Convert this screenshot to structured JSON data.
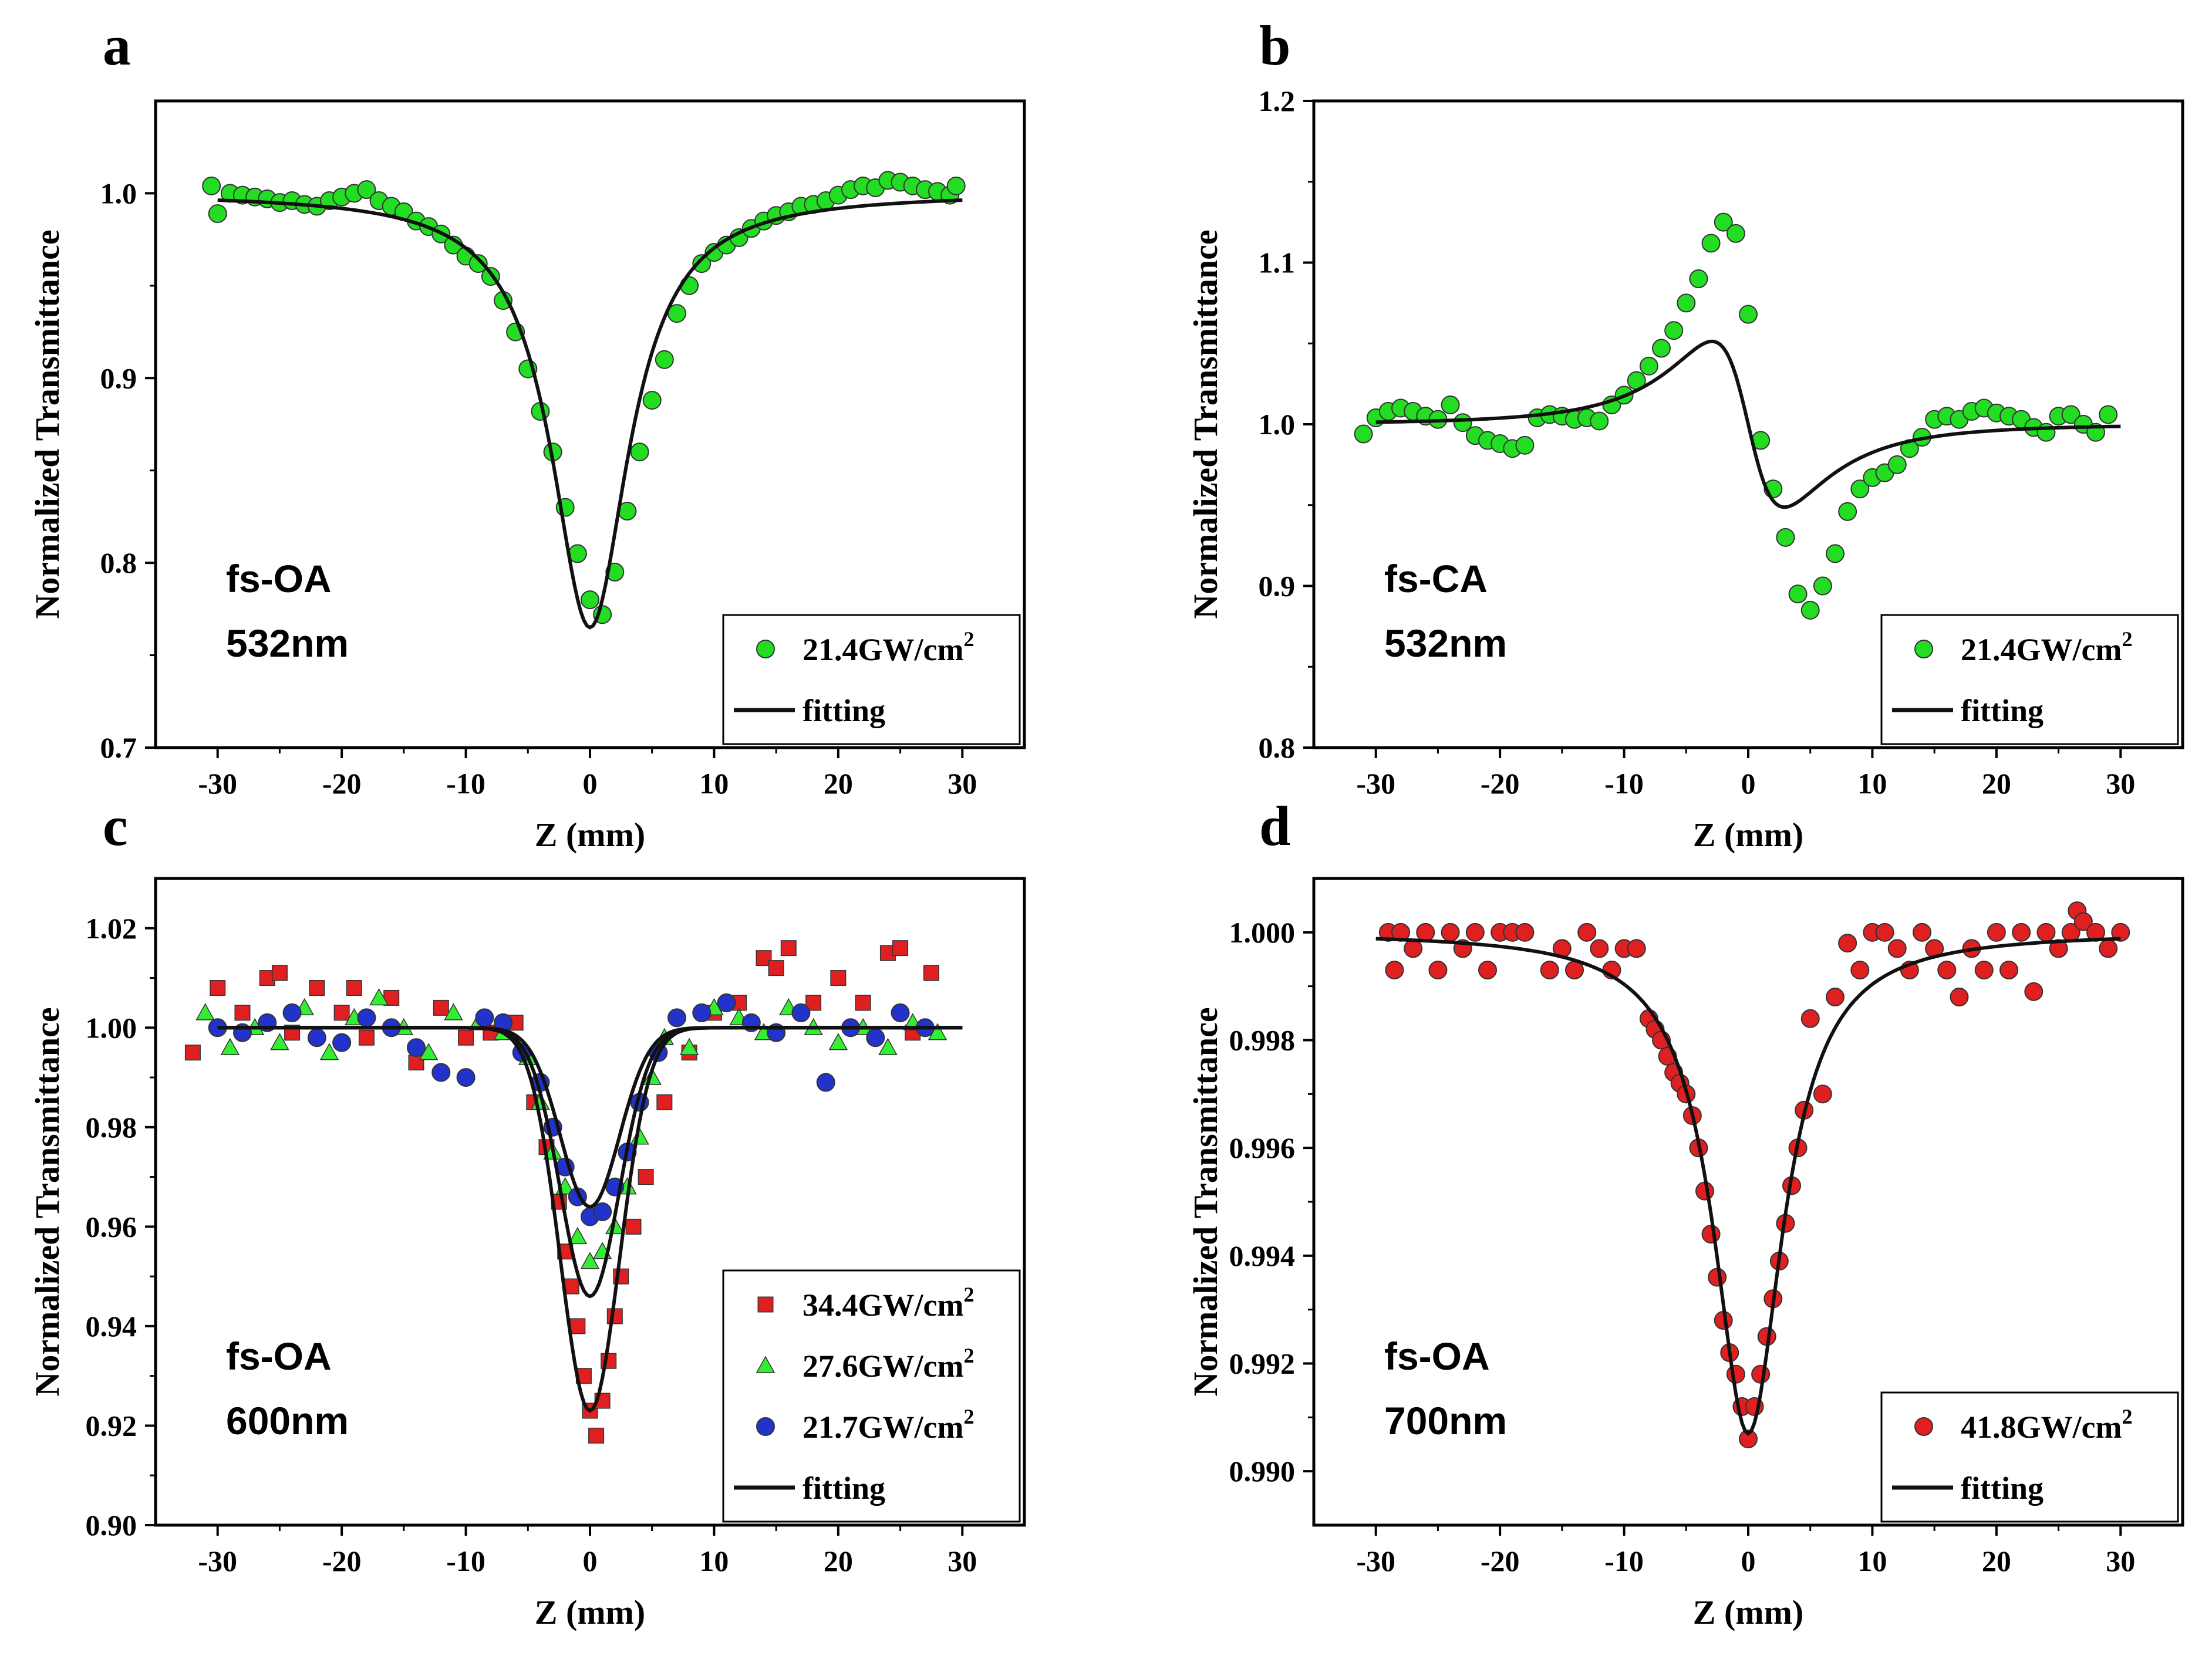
{
  "figure": {
    "panel_letters": [
      "a",
      "b",
      "c",
      "d"
    ]
  },
  "chart_data": [
    {
      "type": "scatter",
      "panel": "a",
      "xlabel": "Z (mm)",
      "ylabel": "Normalized Transmittance",
      "xlim": [
        -35,
        35
      ],
      "ylim": [
        0.7,
        1.05
      ],
      "xticks": [
        -30,
        -20,
        -10,
        0,
        10,
        20,
        30
      ],
      "yticks": [
        0.7,
        0.8,
        0.9,
        1.0
      ],
      "ytick_decimals": 1,
      "annotation": [
        "fs-OA",
        "532nm"
      ],
      "legend_position": "bottom-right",
      "model": {
        "kind": "oa",
        "depth": 0.235,
        "z0": 3.8,
        "baseline": 1.0
      },
      "series": [
        {
          "name": "21.4GW/cm",
          "superscript": "2",
          "marker": "circle",
          "color": "#22dd22",
          "x": [
            -30.5,
            -30.0,
            -29.0,
            -28.0,
            -27.0,
            -26.0,
            -25.0,
            -24.0,
            -23.0,
            -22.0,
            -21.0,
            -20.0,
            -19.0,
            -18.0,
            -17.0,
            -16.0,
            -15.0,
            -14.0,
            -13.0,
            -12.0,
            -11.0,
            -10.0,
            -9.0,
            -8.0,
            -7.0,
            -6.0,
            -5.0,
            -4.0,
            -3.0,
            -2.0,
            -1.0,
            0.0,
            1.0,
            2.0,
            3.0,
            4.0,
            5.0,
            6.0,
            7.0,
            8.0,
            9.0,
            10.0,
            11.0,
            12.0,
            13.0,
            14.0,
            15.0,
            16.0,
            17.0,
            18.0,
            19.0,
            20.0,
            21.0,
            22.0,
            23.0,
            24.0,
            25.0,
            26.0,
            27.0,
            28.0,
            29.0,
            29.5
          ],
          "y": [
            1.004,
            0.989,
            1.0,
            0.999,
            0.998,
            0.997,
            0.995,
            0.996,
            0.994,
            0.993,
            0.996,
            0.998,
            1.0,
            1.002,
            0.996,
            0.993,
            0.99,
            0.985,
            0.982,
            0.978,
            0.972,
            0.966,
            0.962,
            0.955,
            0.942,
            0.925,
            0.905,
            0.882,
            0.86,
            0.83,
            0.805,
            0.78,
            0.772,
            0.795,
            0.828,
            0.86,
            0.888,
            0.91,
            0.935,
            0.95,
            0.962,
            0.968,
            0.972,
            0.976,
            0.981,
            0.985,
            0.988,
            0.99,
            0.993,
            0.994,
            0.996,
            0.999,
            1.002,
            1.004,
            1.003,
            1.007,
            1.006,
            1.004,
            1.002,
            1.001,
            0.999,
            1.004
          ]
        }
      ]
    },
    {
      "type": "scatter",
      "panel": "b",
      "xlabel": "Z (mm)",
      "ylabel": "Normalized Transmittance",
      "xlim": [
        -35,
        35
      ],
      "ylim": [
        0.8,
        1.2
      ],
      "xticks": [
        -30,
        -20,
        -10,
        0,
        10,
        20,
        30
      ],
      "yticks": [
        0.8,
        0.9,
        1.0,
        1.1,
        1.2
      ],
      "ytick_decimals": 1,
      "annotation": [
        "fs-CA",
        "532nm"
      ],
      "legend_position": "bottom-right",
      "model": {
        "kind": "ca",
        "amp": 0.235,
        "z0": 3.4,
        "baseline": 1.0
      },
      "series": [
        {
          "name": "21.4GW/cm",
          "superscript": "2",
          "marker": "circle",
          "color": "#22dd22",
          "x": [
            -31.0,
            -30.0,
            -29.0,
            -28.0,
            -27.0,
            -26.0,
            -25.0,
            -24.0,
            -23.0,
            -22.0,
            -21.0,
            -20.0,
            -19.0,
            -18.0,
            -17.0,
            -16.0,
            -15.0,
            -14.0,
            -13.0,
            -12.0,
            -11.0,
            -10.0,
            -9.0,
            -8.0,
            -7.0,
            -6.0,
            -5.0,
            -4.0,
            -3.0,
            -2.0,
            -1.0,
            0.0,
            1.0,
            2.0,
            3.0,
            4.0,
            5.0,
            6.0,
            7.0,
            8.0,
            9.0,
            10.0,
            11.0,
            12.0,
            13.0,
            14.0,
            15.0,
            16.0,
            17.0,
            18.0,
            19.0,
            20.0,
            21.0,
            22.0,
            23.0,
            24.0,
            25.0,
            26.0,
            27.0,
            28.0,
            29.0
          ],
          "y": [
            0.994,
            1.004,
            1.008,
            1.01,
            1.008,
            1.005,
            1.003,
            1.012,
            1.001,
            0.993,
            0.99,
            0.988,
            0.985,
            0.987,
            1.004,
            1.006,
            1.005,
            1.003,
            1.004,
            1.002,
            1.012,
            1.018,
            1.027,
            1.036,
            1.047,
            1.058,
            1.075,
            1.09,
            1.112,
            1.125,
            1.118,
            1.068,
            0.99,
            0.96,
            0.93,
            0.895,
            0.885,
            0.9,
            0.92,
            0.946,
            0.96,
            0.967,
            0.97,
            0.975,
            0.985,
            0.992,
            1.003,
            1.005,
            1.003,
            1.008,
            1.01,
            1.007,
            1.005,
            1.003,
            0.998,
            0.995,
            1.005,
            1.006,
            1.0,
            0.995,
            1.006
          ]
        }
      ]
    },
    {
      "type": "scatter",
      "panel": "c",
      "xlabel": "Z (mm)",
      "ylabel": "Normalized Transmittance",
      "xlim": [
        -35,
        35
      ],
      "ylim": [
        0.9,
        1.03
      ],
      "xticks": [
        -30,
        -20,
        -10,
        0,
        10,
        20,
        30
      ],
      "yticks": [
        0.9,
        0.92,
        0.94,
        0.96,
        0.98,
        1.0,
        1.02
      ],
      "ytick_decimals": 2,
      "annotation": [
        "fs-OA",
        "600nm"
      ],
      "legend_position": "bottom-right",
      "model": {
        "kind": "oa-multi",
        "depths": [
          0.077,
          0.054,
          0.036
        ],
        "z0": 2.6,
        "baseline": 1.0
      },
      "series": [
        {
          "name": "34.4GW/cm",
          "superscript": "2",
          "marker": "square",
          "color": "#e02020",
          "x": [
            -32.0,
            -30.0,
            -28.0,
            -26.0,
            -25.0,
            -24.0,
            -22.0,
            -20.0,
            -19.0,
            -18.0,
            -16.0,
            -14.0,
            -12.0,
            -10.0,
            -8.0,
            -6.0,
            -4.5,
            -3.5,
            -2.5,
            -2.0,
            -1.5,
            -1.0,
            -0.5,
            0.0,
            0.5,
            1.0,
            1.5,
            2.0,
            2.5,
            3.5,
            4.5,
            6.0,
            8.0,
            10.0,
            12.0,
            14.0,
            15.0,
            16.0,
            18.0,
            20.0,
            22.0,
            24.0,
            25.0,
            26.0,
            27.5
          ],
          "y": [
            0.995,
            1.008,
            1.003,
            1.01,
            1.011,
            0.999,
            1.008,
            1.003,
            1.008,
            0.998,
            1.006,
            0.993,
            1.004,
            0.998,
            0.999,
            1.001,
            0.985,
            0.976,
            0.965,
            0.955,
            0.948,
            0.94,
            0.93,
            0.923,
            0.918,
            0.925,
            0.933,
            0.942,
            0.95,
            0.96,
            0.97,
            0.985,
            0.995,
            1.003,
            1.005,
            1.014,
            1.012,
            1.016,
            1.005,
            1.01,
            1.005,
            1.015,
            1.016,
            0.999,
            1.011
          ]
        },
        {
          "name": "27.6GW/cm",
          "superscript": "2",
          "marker": "triangle",
          "color": "#33ee33",
          "x": [
            -31.0,
            -29.0,
            -27.0,
            -25.0,
            -23.0,
            -21.0,
            -19.0,
            -17.0,
            -15.0,
            -13.0,
            -11.0,
            -9.0,
            -7.0,
            -5.0,
            -4.0,
            -3.0,
            -2.0,
            -1.0,
            0.0,
            1.0,
            2.0,
            3.0,
            4.0,
            5.0,
            6.0,
            8.0,
            10.0,
            12.0,
            14.0,
            16.0,
            18.0,
            20.0,
            22.0,
            24.0,
            26.0,
            28.0
          ],
          "y": [
            1.003,
            0.996,
            1.0,
            0.997,
            1.004,
            0.995,
            1.002,
            1.006,
            1.0,
            0.995,
            1.003,
            1.001,
            0.999,
            0.994,
            0.985,
            0.975,
            0.968,
            0.958,
            0.953,
            0.955,
            0.96,
            0.968,
            0.978,
            0.99,
            0.998,
            0.996,
            1.004,
            1.002,
            0.999,
            1.004,
            1.0,
            0.997,
            1.0,
            0.996,
            1.001,
            0.999
          ]
        },
        {
          "name": "21.7GW/cm",
          "superscript": "2",
          "marker": "circle",
          "color": "#2233cc",
          "x": [
            -30.0,
            -28.0,
            -26.0,
            -24.0,
            -22.0,
            -20.0,
            -18.0,
            -16.0,
            -14.0,
            -12.0,
            -10.0,
            -8.5,
            -7.0,
            -5.5,
            -4.0,
            -3.0,
            -2.0,
            -1.0,
            0.0,
            1.0,
            2.0,
            3.0,
            4.0,
            5.5,
            7.0,
            9.0,
            11.0,
            13.0,
            15.0,
            17.0,
            19.0,
            21.0,
            23.0,
            25.0,
            27.0
          ],
          "y": [
            1.0,
            0.999,
            1.001,
            1.003,
            0.998,
            0.997,
            1.002,
            1.0,
            0.996,
            0.991,
            0.99,
            1.002,
            1.001,
            0.995,
            0.989,
            0.98,
            0.972,
            0.966,
            0.962,
            0.963,
            0.968,
            0.975,
            0.985,
            0.995,
            1.002,
            1.003,
            1.005,
            1.001,
            0.999,
            1.003,
            0.989,
            1.0,
            0.998,
            1.003,
            1.0
          ]
        }
      ],
      "legend_extra": "fitting"
    },
    {
      "type": "scatter",
      "panel": "d",
      "xlabel": "Z (mm)",
      "ylabel": "Normalized Transmittance",
      "xlim": [
        -35,
        35
      ],
      "ylim": [
        0.989,
        1.001
      ],
      "xticks": [
        -30,
        -20,
        -10,
        0,
        10,
        20,
        30
      ],
      "yticks": [
        0.99,
        0.992,
        0.994,
        0.996,
        0.998,
        1.0
      ],
      "ytick_decimals": 3,
      "annotation": [
        "fs-OA",
        "700nm"
      ],
      "legend_position": "bottom-right",
      "model": {
        "kind": "oa",
        "depth": 0.0093,
        "z0": 3.4,
        "baseline": 1.0
      },
      "series": [
        {
          "name": "41.8GW/cm",
          "superscript": "2",
          "marker": "circle",
          "color": "#e02020",
          "x": [
            -29.0,
            -28.5,
            -28.0,
            -27.0,
            -26.0,
            -25.0,
            -24.0,
            -23.0,
            -22.0,
            -21.0,
            -20.0,
            -19.0,
            -18.0,
            -16.0,
            -15.0,
            -14.0,
            -13.0,
            -12.0,
            -11.0,
            -10.0,
            -9.0,
            -8.0,
            -7.5,
            -7.0,
            -6.5,
            -6.0,
            -5.5,
            -5.0,
            -4.5,
            -4.0,
            -3.5,
            -3.0,
            -2.5,
            -2.0,
            -1.5,
            -1.0,
            -0.5,
            0.0,
            0.5,
            1.0,
            1.5,
            2.0,
            2.5,
            3.0,
            3.5,
            4.0,
            4.5,
            5.0,
            6.0,
            7.0,
            8.0,
            9.0,
            10.0,
            11.0,
            12.0,
            13.0,
            14.0,
            15.0,
            16.0,
            17.0,
            18.0,
            19.0,
            20.0,
            21.0,
            22.0,
            23.0,
            24.0,
            25.0,
            26.0,
            26.5,
            27.0,
            28.0,
            29.0,
            30.0
          ],
          "y": [
            1.0,
            0.9993,
            1.0,
            0.9997,
            1.0,
            0.9993,
            1.0,
            0.9997,
            1.0,
            0.9993,
            1.0,
            1.0,
            1.0,
            0.9993,
            0.9997,
            0.9993,
            1.0,
            0.9997,
            0.9993,
            0.9997,
            0.9997,
            0.9984,
            0.9982,
            0.998,
            0.9977,
            0.9974,
            0.9972,
            0.997,
            0.9966,
            0.996,
            0.9952,
            0.9944,
            0.9936,
            0.9928,
            0.9922,
            0.9918,
            0.9912,
            0.9906,
            0.9912,
            0.9918,
            0.9925,
            0.9932,
            0.9939,
            0.9946,
            0.9953,
            0.996,
            0.9967,
            0.9984,
            0.997,
            0.9988,
            0.9998,
            0.9993,
            1.0,
            1.0,
            0.9997,
            0.9993,
            1.0,
            0.9997,
            0.9993,
            0.9988,
            0.9997,
            0.9993,
            1.0,
            0.9993,
            1.0,
            0.9989,
            1.0,
            0.9997,
            1.0,
            1.0004,
            1.0002,
            1.0,
            0.9997,
            1.0
          ]
        }
      ]
    }
  ],
  "legend_common": {
    "fit_label": "fitting"
  }
}
